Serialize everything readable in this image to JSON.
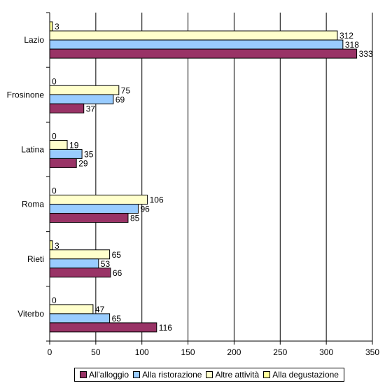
{
  "chart_data": {
    "type": "bar",
    "orientation": "horizontal",
    "categories": [
      "Lazio",
      "Frosinone",
      "Latina",
      "Roma",
      "Rieti",
      "Viterbo"
    ],
    "series": [
      {
        "name": "All'alloggio",
        "color": "#993366",
        "values": [
          333,
          37,
          29,
          85,
          66,
          116
        ]
      },
      {
        "name": "Alla ristorazione",
        "color": "#99CCFF",
        "values": [
          318,
          69,
          35,
          96,
          53,
          65
        ]
      },
      {
        "name": "Altre attività",
        "color": "#FFFFCC",
        "values": [
          312,
          75,
          19,
          106,
          65,
          47
        ]
      },
      {
        "name": "Alla degustazione",
        "color": "#FFFF99",
        "values": [
          3,
          0,
          0,
          0,
          3,
          0
        ]
      }
    ],
    "xlim": [
      0,
      350
    ],
    "x_ticks": [
      0,
      50,
      100,
      150,
      200,
      250,
      300,
      350
    ],
    "grid": "vertical",
    "legend_position": "bottom",
    "data_labels": true
  }
}
